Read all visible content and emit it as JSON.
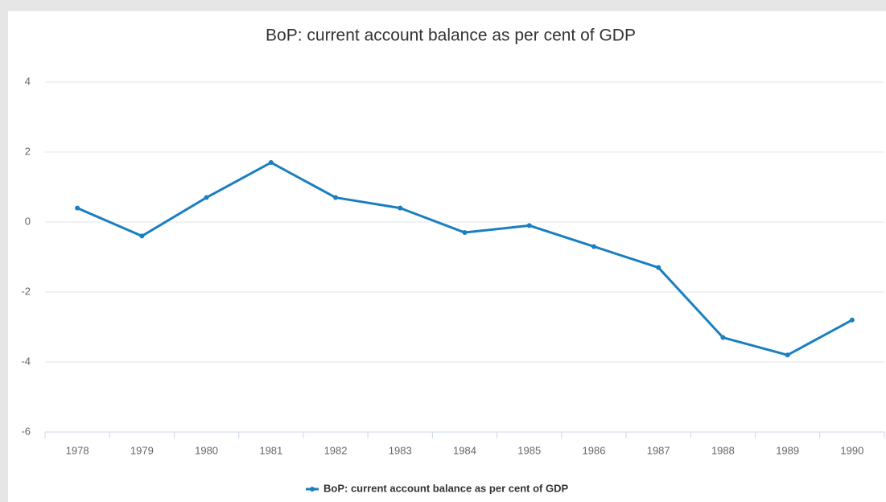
{
  "chart_data": {
    "type": "line",
    "title": "BoP: current account balance as per cent of GDP",
    "categories": [
      "1978",
      "1979",
      "1980",
      "1981",
      "1982",
      "1983",
      "1984",
      "1985",
      "1986",
      "1987",
      "1988",
      "1989",
      "1990"
    ],
    "series": [
      {
        "name": "BoP: current account balance as per cent of GDP",
        "color": "#1a7fc1",
        "values": [
          0.4,
          -0.4,
          0.7,
          1.7,
          0.7,
          0.4,
          -0.3,
          -0.1,
          -0.7,
          -1.3,
          -3.3,
          -3.8,
          -2.8
        ]
      }
    ],
    "ylim": [
      -6,
      4
    ],
    "yticks": [
      -6,
      -4,
      -2,
      0,
      2,
      4
    ],
    "grid": true,
    "legend": "bottom"
  }
}
